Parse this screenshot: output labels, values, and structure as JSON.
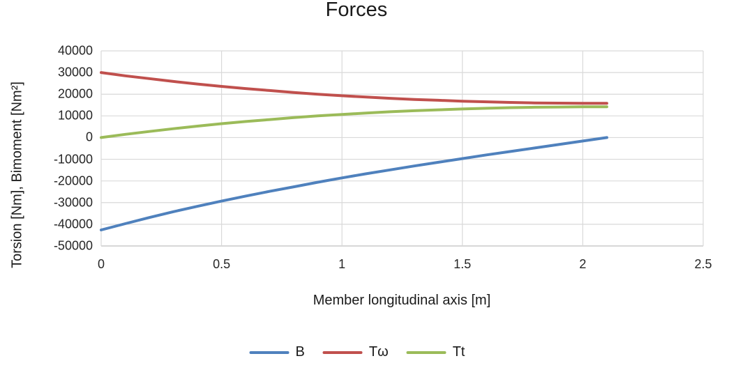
{
  "title": "Forces",
  "labels": {
    "y_title": "Torsion [Nm], Bimoment [Nm²]",
    "x_title": "Member longitudinal axis [m]"
  },
  "colors": {
    "series_b": "#4F81BD",
    "series_tw": "#C0504D",
    "series_tt": "#9BBB59",
    "gridline": "#D9D9D9",
    "axis_line": "#BFBFBF",
    "text": "#262626"
  },
  "chart_data": {
    "type": "line",
    "title": "Forces",
    "xlabel": "Member longitudinal axis [m]",
    "ylabel": "Torsion [Nm], Bimoment [Nm²]",
    "xlim": [
      0,
      2.5
    ],
    "ylim": [
      -50000,
      40000
    ],
    "grid": true,
    "legend_position": "bottom",
    "x_ticks": [
      0,
      0.5,
      1,
      1.5,
      2,
      2.5
    ],
    "y_ticks": [
      40000,
      30000,
      20000,
      10000,
      0,
      -10000,
      -20000,
      -30000,
      -40000,
      -50000
    ],
    "x": [
      0,
      0.1,
      0.2,
      0.3,
      0.4,
      0.5,
      0.6,
      0.7,
      0.8,
      0.9,
      1.0,
      1.1,
      1.2,
      1.3,
      1.4,
      1.5,
      1.6,
      1.7,
      1.8,
      1.9,
      2.0,
      2.1
    ],
    "series": [
      {
        "name": "B",
        "color": "#4F81BD",
        "values": [
          -42600,
          -39700,
          -36900,
          -34200,
          -31700,
          -29300,
          -27000,
          -24800,
          -22700,
          -20600,
          -18600,
          -16700,
          -14900,
          -13100,
          -11400,
          -9700,
          -8000,
          -6400,
          -4800,
          -3200,
          -1600,
          0
        ]
      },
      {
        "name": "Tω",
        "color": "#C0504D",
        "values": [
          30000,
          28500,
          27200,
          25900,
          24700,
          23600,
          22600,
          21700,
          20800,
          20000,
          19300,
          18700,
          18100,
          17600,
          17200,
          16800,
          16500,
          16200,
          16000,
          15900,
          15800,
          15800
        ]
      },
      {
        "name": "Tt",
        "color": "#9BBB59",
        "values": [
          0,
          1500,
          2800,
          4100,
          5300,
          6400,
          7400,
          8300,
          9200,
          10000,
          10700,
          11300,
          11900,
          12400,
          12800,
          13200,
          13500,
          13800,
          14000,
          14100,
          14200,
          14200
        ]
      }
    ]
  }
}
